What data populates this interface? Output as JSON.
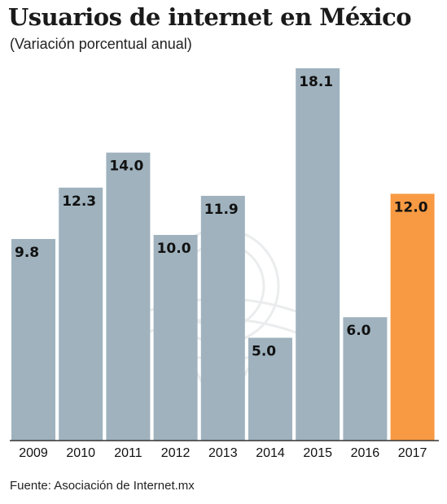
{
  "header": {
    "title": "Usuarios de internet en México",
    "subtitle": "(Variación porcentual anual)"
  },
  "footer": {
    "source": "Fuente: Asociación de Internet.mx"
  },
  "colors": {
    "bar": "#9fb2be",
    "highlight": "#f79a43",
    "baseline": "#333333"
  },
  "chart_data": {
    "type": "bar",
    "categories": [
      "2009",
      "2010",
      "2011",
      "2012",
      "2013",
      "2014",
      "2015",
      "2016",
      "2017"
    ],
    "values": [
      9.8,
      12.3,
      14.0,
      10.0,
      11.9,
      5.0,
      18.1,
      6.0,
      12.0
    ],
    "value_labels": [
      "9.8",
      "12.3",
      "14.0",
      "10.0",
      "11.9",
      "5.0",
      "18.1",
      "6.0",
      "12.0"
    ],
    "highlight_index": 8,
    "ylim": [
      0,
      18.1
    ],
    "grid": false,
    "legend": "none"
  }
}
